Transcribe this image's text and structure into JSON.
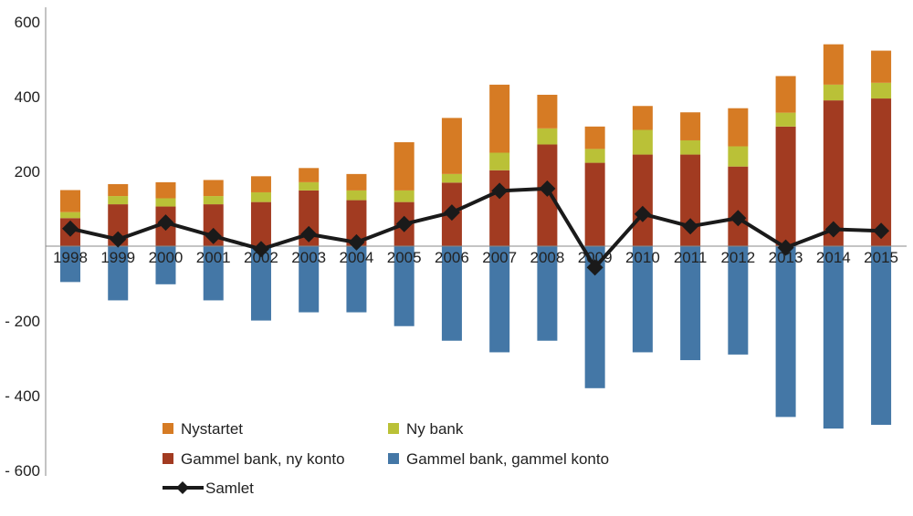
{
  "chart_data": {
    "type": "bar",
    "stacked": true,
    "title": "",
    "xlabel": "",
    "ylabel": "",
    "ylim": [
      -600,
      600
    ],
    "yticks": [
      600,
      400,
      200,
      0,
      -200,
      -400,
      -600
    ],
    "ytick_labels": [
      "600",
      "400",
      "200",
      "",
      "- 200",
      "- 400",
      "- 600"
    ],
    "grid": false,
    "legend_position": "bottom-left",
    "categories": [
      "1998",
      "1999",
      "2000",
      "2001",
      "2002",
      "2003",
      "2004",
      "2005",
      "2006",
      "2007",
      "2008",
      "2009",
      "2010",
      "2011",
      "2012",
      "2013",
      "2014",
      "2015"
    ],
    "series": [
      {
        "name": "Gammel bank, ny konto",
        "type": "bar",
        "color": "#A23B21",
        "values": [
          75,
          112,
          106,
          112,
          118,
          149,
          123,
          118,
          170,
          203,
          272,
          223,
          245,
          245,
          213,
          320,
          390,
          395
        ]
      },
      {
        "name": "Ny bank",
        "type": "bar",
        "color": "#BAC137",
        "values": [
          16,
          22,
          22,
          22,
          26,
          22,
          26,
          31,
          23,
          47,
          43,
          37,
          66,
          38,
          54,
          37,
          42,
          42
        ]
      },
      {
        "name": "Nystartet",
        "type": "bar",
        "color": "#D67B24",
        "values": [
          59,
          32,
          43,
          43,
          43,
          38,
          44,
          129,
          150,
          182,
          90,
          60,
          64,
          75,
          102,
          98,
          108,
          86
        ]
      },
      {
        "name": "Gammel bank, gammel konto",
        "type": "bar",
        "color": "#4477A6",
        "values": [
          -96,
          -145,
          -102,
          -145,
          -199,
          -177,
          -177,
          -214,
          -253,
          -284,
          -253,
          -380,
          -284,
          -305,
          -290,
          -457,
          -488,
          -478
        ]
      },
      {
        "name": "Samlet",
        "type": "line",
        "color": "#1A1A1A",
        "marker": "diamond",
        "values": [
          47,
          18,
          63,
          27,
          -8,
          32,
          10,
          59,
          90,
          148,
          154,
          -57,
          86,
          53,
          75,
          -4,
          45,
          41
        ]
      }
    ],
    "legend": [
      "Nystartet",
      "Ny bank",
      "Gammel bank, ny konto",
      "Gammel bank, gammel konto",
      "Samlet"
    ]
  }
}
